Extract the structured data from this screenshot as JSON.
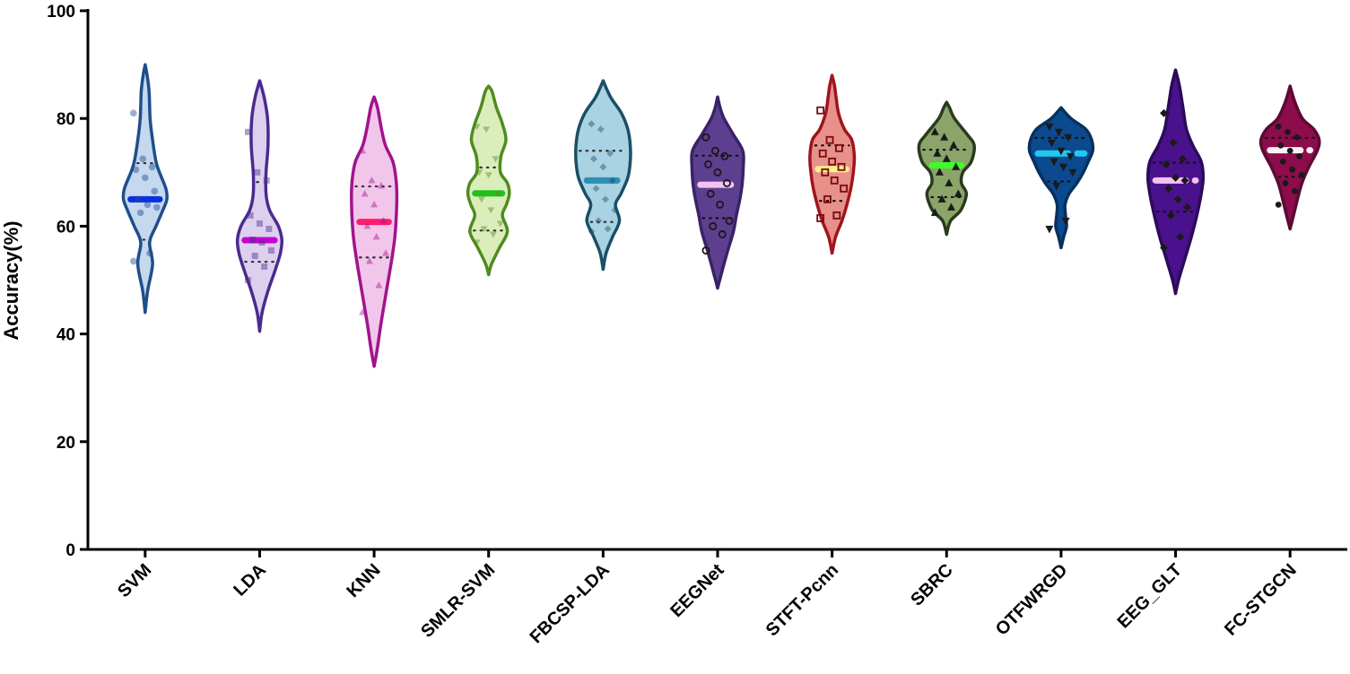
{
  "chart_data": {
    "type": "violin",
    "title": "",
    "xlabel": "",
    "ylabel": "Accuracy(%)",
    "ylim": [
      0,
      100
    ],
    "yticks": [
      "0",
      "20",
      "40",
      "60",
      "80",
      "100"
    ],
    "grid": false,
    "legend": "none",
    "series": [
      {
        "name": "SVM",
        "fill": "#c5d8ee",
        "stroke": "#1f4e8c",
        "median_color": "#0a2ee0",
        "range": [
          44,
          90
        ],
        "median": 65,
        "q1": 57.5,
        "q3": 71.7,
        "points": [
          81,
          72.5,
          71,
          70.5,
          69,
          66.5,
          65,
          64,
          63.5,
          62.5,
          55,
          53.5
        ],
        "profile": [
          [
            44,
            0.0
          ],
          [
            48,
            0.05
          ],
          [
            53,
            0.15
          ],
          [
            57,
            0.09
          ],
          [
            60,
            0.22
          ],
          [
            63,
            0.36
          ],
          [
            65,
            0.44
          ],
          [
            67,
            0.42
          ],
          [
            70,
            0.29
          ],
          [
            72,
            0.22
          ],
          [
            76,
            0.15
          ],
          [
            80,
            0.1
          ],
          [
            85,
            0.08
          ],
          [
            88,
            0.04
          ],
          [
            90,
            0.0
          ]
        ]
      },
      {
        "name": "LDA",
        "fill": "#ddd0ee",
        "stroke": "#4b2a8e",
        "median_color": "#c800d6",
        "range": [
          40.5,
          87
        ],
        "median": 57.4,
        "q1": 53.4,
        "q3": 68.2,
        "points": [
          77.5,
          70,
          68.5,
          62,
          60.5,
          59.5,
          57.5,
          57,
          55.5,
          54.5,
          52.5,
          50
        ],
        "profile": [
          [
            40.5,
            0.0
          ],
          [
            44,
            0.05
          ],
          [
            48,
            0.17
          ],
          [
            52,
            0.32
          ],
          [
            55,
            0.42
          ],
          [
            57.5,
            0.45
          ],
          [
            60,
            0.38
          ],
          [
            63,
            0.2
          ],
          [
            66,
            0.13
          ],
          [
            70,
            0.13
          ],
          [
            75,
            0.17
          ],
          [
            80,
            0.16
          ],
          [
            84,
            0.09
          ],
          [
            87,
            0.0
          ]
        ]
      },
      {
        "name": "KNN",
        "fill": "#f2c6ea",
        "stroke": "#a0148c",
        "median_color": "#ff1d6e",
        "range": [
          34,
          84
        ],
        "median": 60.8,
        "q1": 54.2,
        "q3": 67.4,
        "points": [
          74,
          68.5,
          67.5,
          66,
          64,
          61,
          60,
          58,
          55,
          53.5,
          49,
          44
        ],
        "profile": [
          [
            34,
            0.0
          ],
          [
            37,
            0.06
          ],
          [
            42,
            0.14
          ],
          [
            48,
            0.25
          ],
          [
            54,
            0.36
          ],
          [
            58,
            0.42
          ],
          [
            62,
            0.45
          ],
          [
            66,
            0.46
          ],
          [
            69,
            0.44
          ],
          [
            72,
            0.38
          ],
          [
            75,
            0.23
          ],
          [
            78,
            0.15
          ],
          [
            82,
            0.07
          ],
          [
            84,
            0.0
          ]
        ]
      },
      {
        "name": "SMLR-SVM",
        "fill": "#dcedbc",
        "stroke": "#4f8c1f",
        "median_color": "#22c01a",
        "range": [
          51,
          86
        ],
        "median": 66.1,
        "q1": 59.2,
        "q3": 70.9,
        "points": [
          78.5,
          78,
          72.5,
          70,
          69.5,
          66,
          65,
          63,
          60.5,
          59.5,
          58.5,
          57
        ],
        "profile": [
          [
            51,
            0.0
          ],
          [
            53,
            0.06
          ],
          [
            56,
            0.22
          ],
          [
            59,
            0.38
          ],
          [
            62,
            0.28
          ],
          [
            64,
            0.36
          ],
          [
            66,
            0.42
          ],
          [
            68,
            0.38
          ],
          [
            70,
            0.24
          ],
          [
            73,
            0.25
          ],
          [
            76,
            0.35
          ],
          [
            79,
            0.28
          ],
          [
            82,
            0.16
          ],
          [
            85,
            0.07
          ],
          [
            86,
            0.0
          ]
        ]
      },
      {
        "name": "FBCSP-LDA",
        "fill": "#a9d3e2",
        "stroke": "#1a4f66",
        "median_color": "#2b8fb8",
        "range": [
          52,
          87
        ],
        "median": 68.5,
        "q1": 60.8,
        "q3": 74.0,
        "points": [
          79,
          78,
          73.5,
          72.5,
          71,
          68.5,
          67,
          65,
          63,
          61,
          59.5,
          59
        ],
        "profile": [
          [
            52,
            0.0
          ],
          [
            55,
            0.06
          ],
          [
            58,
            0.19
          ],
          [
            61,
            0.33
          ],
          [
            64,
            0.25
          ],
          [
            66,
            0.36
          ],
          [
            69,
            0.5
          ],
          [
            72,
            0.55
          ],
          [
            75,
            0.55
          ],
          [
            78,
            0.5
          ],
          [
            81,
            0.37
          ],
          [
            84,
            0.15
          ],
          [
            87,
            0.0
          ]
        ]
      },
      {
        "name": "EEGNet",
        "fill": "#5d3f8f",
        "stroke": "#3a2266",
        "median_color": "#f2c4f0",
        "range": [
          48.5,
          84
        ],
        "median": 67.7,
        "q1": 61.5,
        "q3": 73.1,
        "points": [
          76.5,
          74,
          73,
          71.5,
          70,
          68,
          66,
          64,
          61,
          60,
          58.5,
          55.5
        ],
        "profile": [
          [
            48.5,
            0.0
          ],
          [
            51,
            0.07
          ],
          [
            55,
            0.19
          ],
          [
            59,
            0.32
          ],
          [
            62,
            0.38
          ],
          [
            65,
            0.45
          ],
          [
            68,
            0.5
          ],
          [
            71,
            0.52
          ],
          [
            74,
            0.51
          ],
          [
            77,
            0.32
          ],
          [
            80,
            0.13
          ],
          [
            82,
            0.05
          ],
          [
            84,
            0.0
          ]
        ]
      },
      {
        "name": "STFT-Pcnn",
        "fill": "#e8908a",
        "stroke": "#a0141c",
        "median_color": "#f7f28a",
        "range": [
          55,
          88
        ],
        "median": 70.6,
        "q1": 64.7,
        "q3": 75.0,
        "points": [
          81.5,
          76,
          74.5,
          73.5,
          72,
          71,
          70,
          68.5,
          67,
          65,
          62,
          61.5
        ],
        "profile": [
          [
            55,
            0.0
          ],
          [
            58,
            0.07
          ],
          [
            61,
            0.2
          ],
          [
            64,
            0.3
          ],
          [
            67,
            0.38
          ],
          [
            70,
            0.43
          ],
          [
            73,
            0.45
          ],
          [
            76,
            0.4
          ],
          [
            78,
            0.25
          ],
          [
            81,
            0.13
          ],
          [
            84,
            0.08
          ],
          [
            86,
            0.05
          ],
          [
            88,
            0.0
          ]
        ]
      },
      {
        "name": "SBRC",
        "fill": "#8ba46a",
        "stroke": "#2a3a1c",
        "median_color": "#3aff2a",
        "range": [
          58.5,
          83
        ],
        "median": 71.3,
        "q1": 65.4,
        "q3": 74.2,
        "points": [
          77.5,
          76.5,
          75,
          73.5,
          72.5,
          71,
          70,
          68,
          66,
          65,
          63.5,
          62.5
        ],
        "profile": [
          [
            58.5,
            0.0
          ],
          [
            61,
            0.08
          ],
          [
            63,
            0.29
          ],
          [
            66,
            0.4
          ],
          [
            68,
            0.3
          ],
          [
            70,
            0.33
          ],
          [
            72,
            0.5
          ],
          [
            75,
            0.56
          ],
          [
            77,
            0.42
          ],
          [
            80,
            0.16
          ],
          [
            82,
            0.06
          ],
          [
            83,
            0.0
          ]
        ]
      },
      {
        "name": "OTFWRGD",
        "fill": "#0b4a8f",
        "stroke": "#07305c",
        "median_color": "#24c7ee",
        "range": [
          56,
          82
        ],
        "median": 73.5,
        "q1": 68.3,
        "q3": 76.4,
        "points": [
          78.5,
          77.5,
          76.5,
          75.5,
          74,
          73,
          72,
          71,
          70,
          67.5,
          61,
          59.5
        ],
        "profile": [
          [
            56,
            0.0
          ],
          [
            58,
            0.05
          ],
          [
            60,
            0.11
          ],
          [
            62,
            0.09
          ],
          [
            64,
            0.08
          ],
          [
            66,
            0.16
          ],
          [
            68,
            0.32
          ],
          [
            70,
            0.45
          ],
          [
            72,
            0.55
          ],
          [
            74,
            0.64
          ],
          [
            76,
            0.62
          ],
          [
            78,
            0.5
          ],
          [
            80,
            0.2
          ],
          [
            82,
            0.0
          ]
        ]
      },
      {
        "name": "EEG_GLT",
        "fill": "#4a118c",
        "stroke": "#2c0a5c",
        "median_color": "#f5c2ee",
        "range": [
          47.5,
          89
        ],
        "median": 68.5,
        "q1": 62.7,
        "q3": 71.8,
        "points": [
          81,
          75.5,
          72.5,
          71.5,
          69,
          68.5,
          67,
          65,
          63.5,
          62,
          58,
          56
        ],
        "profile": [
          [
            47.5,
            0.0
          ],
          [
            50,
            0.06
          ],
          [
            54,
            0.19
          ],
          [
            58,
            0.32
          ],
          [
            62,
            0.43
          ],
          [
            66,
            0.52
          ],
          [
            69,
            0.56
          ],
          [
            72,
            0.52
          ],
          [
            75,
            0.35
          ],
          [
            78,
            0.22
          ],
          [
            82,
            0.15
          ],
          [
            86,
            0.08
          ],
          [
            89,
            0.0
          ]
        ]
      },
      {
        "name": "FC-STGCN",
        "fill": "#8c0c4c",
        "stroke": "#5c0a33",
        "median_color": "#fff0f5",
        "range": [
          59.5,
          86
        ],
        "median": 74.1,
        "q1": 69.2,
        "q3": 76.4,
        "points": [
          78.5,
          77.5,
          76.5,
          75,
          74,
          73,
          72,
          70.5,
          69.5,
          68,
          66.5,
          64
        ],
        "profile": [
          [
            59.5,
            0.0
          ],
          [
            62,
            0.07
          ],
          [
            65,
            0.15
          ],
          [
            68,
            0.24
          ],
          [
            71,
            0.38
          ],
          [
            74,
            0.55
          ],
          [
            76,
            0.59
          ],
          [
            78,
            0.48
          ],
          [
            80,
            0.25
          ],
          [
            83,
            0.1
          ],
          [
            86,
            0.0
          ]
        ]
      }
    ]
  }
}
